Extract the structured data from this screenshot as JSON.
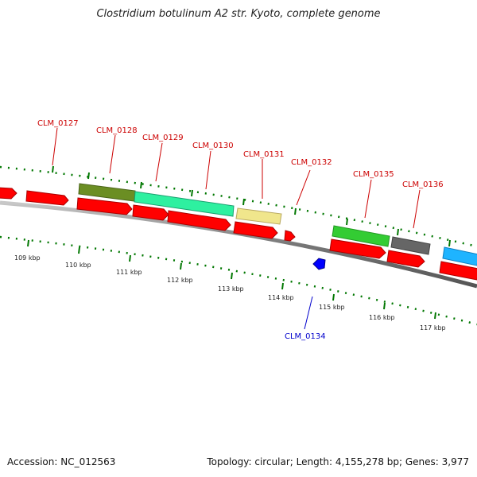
{
  "title": "Clostridium botulinum A2 str. Kyoto, complete genome",
  "footer": {
    "accession": "Accession: NC_012563",
    "stats": "Topology: circular; Length: 4,155,278 bp; Genes: 3,977"
  },
  "colors": {
    "cds_red": "#ff0000",
    "olive": "#6b8e23",
    "aquamarine": "#2ef0a0",
    "khaki": "#f0e68c",
    "green": "#33cc33",
    "gray": "#666666",
    "blue": "#0000ff",
    "sky": "#1eb4ff",
    "tick_green": "#007700",
    "label_red": "#cc0000",
    "label_blue": "#0000cc"
  },
  "scale_ticks": [
    "109 kbp",
    "110 kbp",
    "111 kbp",
    "112 kbp",
    "113 kbp",
    "114 kbp",
    "115 kbp",
    "116 kbp",
    "117 kbp"
  ],
  "gene_labels_forward": [
    "CLM_0127",
    "CLM_0128",
    "CLM_0129",
    "CLM_0130",
    "CLM_0131",
    "CLM_0132",
    "CLM_0135",
    "CLM_0136"
  ],
  "gene_labels_reverse": [
    "CLM_0134"
  ]
}
